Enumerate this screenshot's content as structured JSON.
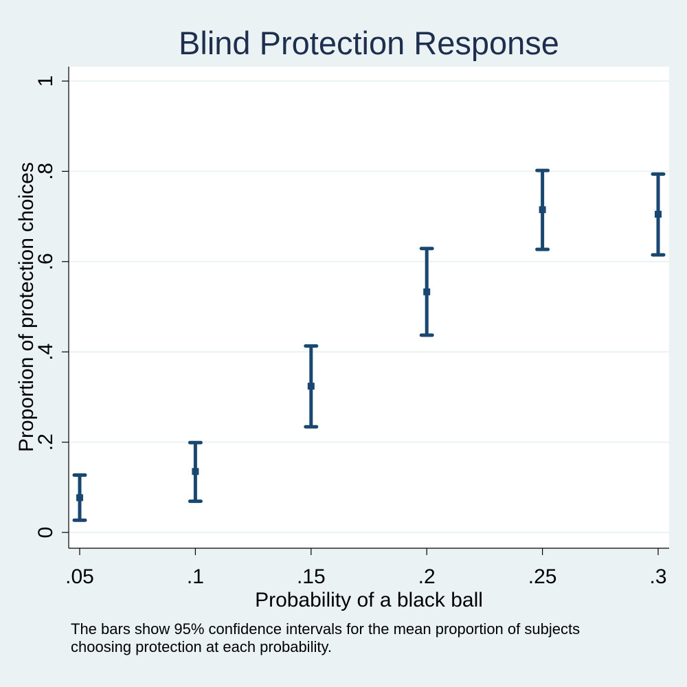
{
  "chart_data": {
    "type": "errorbar",
    "title": "Blind Protection Response",
    "xlabel": "Probability of a black ball",
    "ylabel": "Proportion of protection choices",
    "note_lines": [
      "The bars show 95% confidence intervals for the mean proportion of subjects",
      "choosing protection at each probability."
    ],
    "x_ticks": [
      {
        "value": 0.05,
        "label": ".05"
      },
      {
        "value": 0.1,
        "label": ".1"
      },
      {
        "value": 0.15,
        "label": ".15"
      },
      {
        "value": 0.2,
        "label": ".2"
      },
      {
        "value": 0.25,
        "label": ".25"
      },
      {
        "value": 0.3,
        "label": ".3"
      }
    ],
    "y_ticks": [
      {
        "value": 0,
        "label": "0"
      },
      {
        "value": 0.2,
        "label": ".2"
      },
      {
        "value": 0.4,
        "label": ".4"
      },
      {
        "value": 0.6,
        "label": ".6"
      },
      {
        "value": 0.8,
        "label": ".8"
      },
      {
        "value": 1,
        "label": "1"
      }
    ],
    "xlim": [
      0.05,
      0.3
    ],
    "ylim": [
      0,
      1
    ],
    "grid": true,
    "points": [
      {
        "x": 0.05,
        "mean": 0.077,
        "lower": 0.027,
        "upper": 0.127
      },
      {
        "x": 0.1,
        "mean": 0.135,
        "lower": 0.069,
        "upper": 0.199
      },
      {
        "x": 0.15,
        "mean": 0.324,
        "lower": 0.234,
        "upper": 0.413
      },
      {
        "x": 0.2,
        "mean": 0.533,
        "lower": 0.437,
        "upper": 0.629
      },
      {
        "x": 0.25,
        "mean": 0.715,
        "lower": 0.627,
        "upper": 0.802
      },
      {
        "x": 0.3,
        "mean": 0.705,
        "lower": 0.615,
        "upper": 0.794
      }
    ],
    "colors": {
      "background": "#eaf2f3",
      "plot": "#ffffff",
      "grid": "#eaf2f3",
      "series": "#1a476f",
      "title": "#1e2e4f"
    }
  }
}
